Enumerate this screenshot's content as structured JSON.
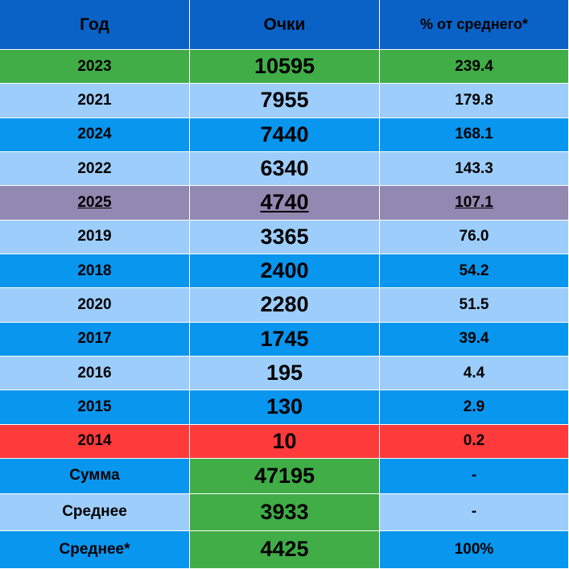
{
  "table": {
    "header": [
      "Год",
      "Очки",
      "% от среднего*"
    ],
    "rows": [
      [
        "2023",
        "10595",
        "239.4"
      ],
      [
        "2021",
        "7955",
        "179.8"
      ],
      [
        "2024",
        "7440",
        "168.1"
      ],
      [
        "2022",
        "6340",
        "143.3"
      ],
      [
        "2025",
        "4740",
        "107.1"
      ],
      [
        "2019",
        "3365",
        "76.0"
      ],
      [
        "2018",
        "2400",
        "54.2"
      ],
      [
        "2020",
        "2280",
        "51.5"
      ],
      [
        "2017",
        "1745",
        "39.4"
      ],
      [
        "2016",
        "195",
        "4.4"
      ],
      [
        "2015",
        "130",
        "2.9"
      ],
      [
        "2014",
        "10",
        "0.2"
      ],
      [
        "Сумма",
        "47195",
        "-"
      ],
      [
        "Среднее",
        "3933",
        "-"
      ],
      [
        "Среднее*",
        "4425",
        "100%"
      ]
    ]
  }
}
